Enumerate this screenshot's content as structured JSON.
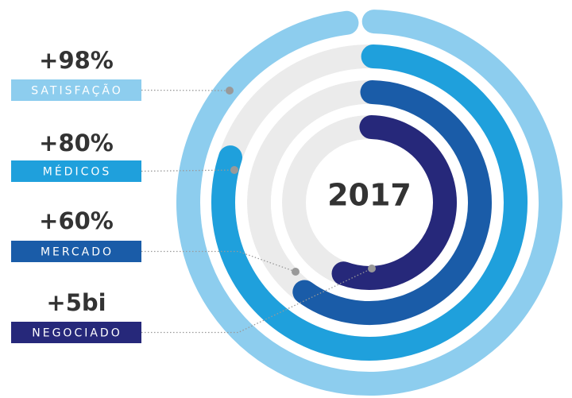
{
  "chart_data": {
    "type": "radial_bar",
    "center_label": "2017",
    "series": [
      {
        "name": "SATISFAÇÃO",
        "color": "#8dcdee",
        "values": [
          98
        ],
        "value_labels": [
          "+98%"
        ],
        "lim": [
          0,
          100
        ]
      },
      {
        "name": "MÉDICOS",
        "color": "#1fa0dc",
        "values": [
          80
        ],
        "value_labels": [
          "+80%"
        ],
        "lim": [
          0,
          100
        ]
      },
      {
        "name": "MERCADO",
        "color": "#1a5ca8",
        "values": [
          60
        ],
        "value_labels": [
          "+60%"
        ],
        "lim": [
          0,
          100
        ]
      },
      {
        "name": "NEGOCIADO",
        "color": "#26287a",
        "values": [
          5
        ],
        "value_labels": [
          "+5bi"
        ],
        "lim": [
          0,
          9
        ]
      }
    ]
  }
}
